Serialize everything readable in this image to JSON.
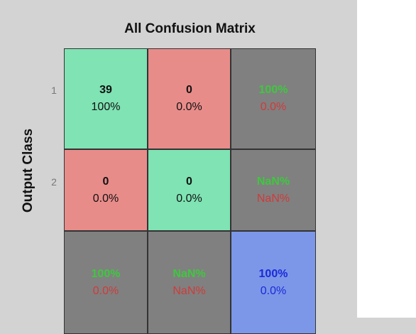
{
  "title": "All Confusion Matrix",
  "y_label": "Output Class",
  "row_labels": [
    "1",
    "2"
  ],
  "cells": [
    [
      [
        "39",
        "100%"
      ],
      [
        "0",
        "0.0%"
      ],
      [
        "100%",
        "0.0%"
      ]
    ],
    [
      [
        "0",
        "0.0%"
      ],
      [
        "0",
        "0.0%"
      ],
      [
        "NaN%",
        "NaN%"
      ]
    ],
    [
      [
        "100%",
        "0.0%"
      ],
      [
        "NaN%",
        "NaN%"
      ],
      [
        "100%",
        "0.0%"
      ]
    ]
  ]
}
